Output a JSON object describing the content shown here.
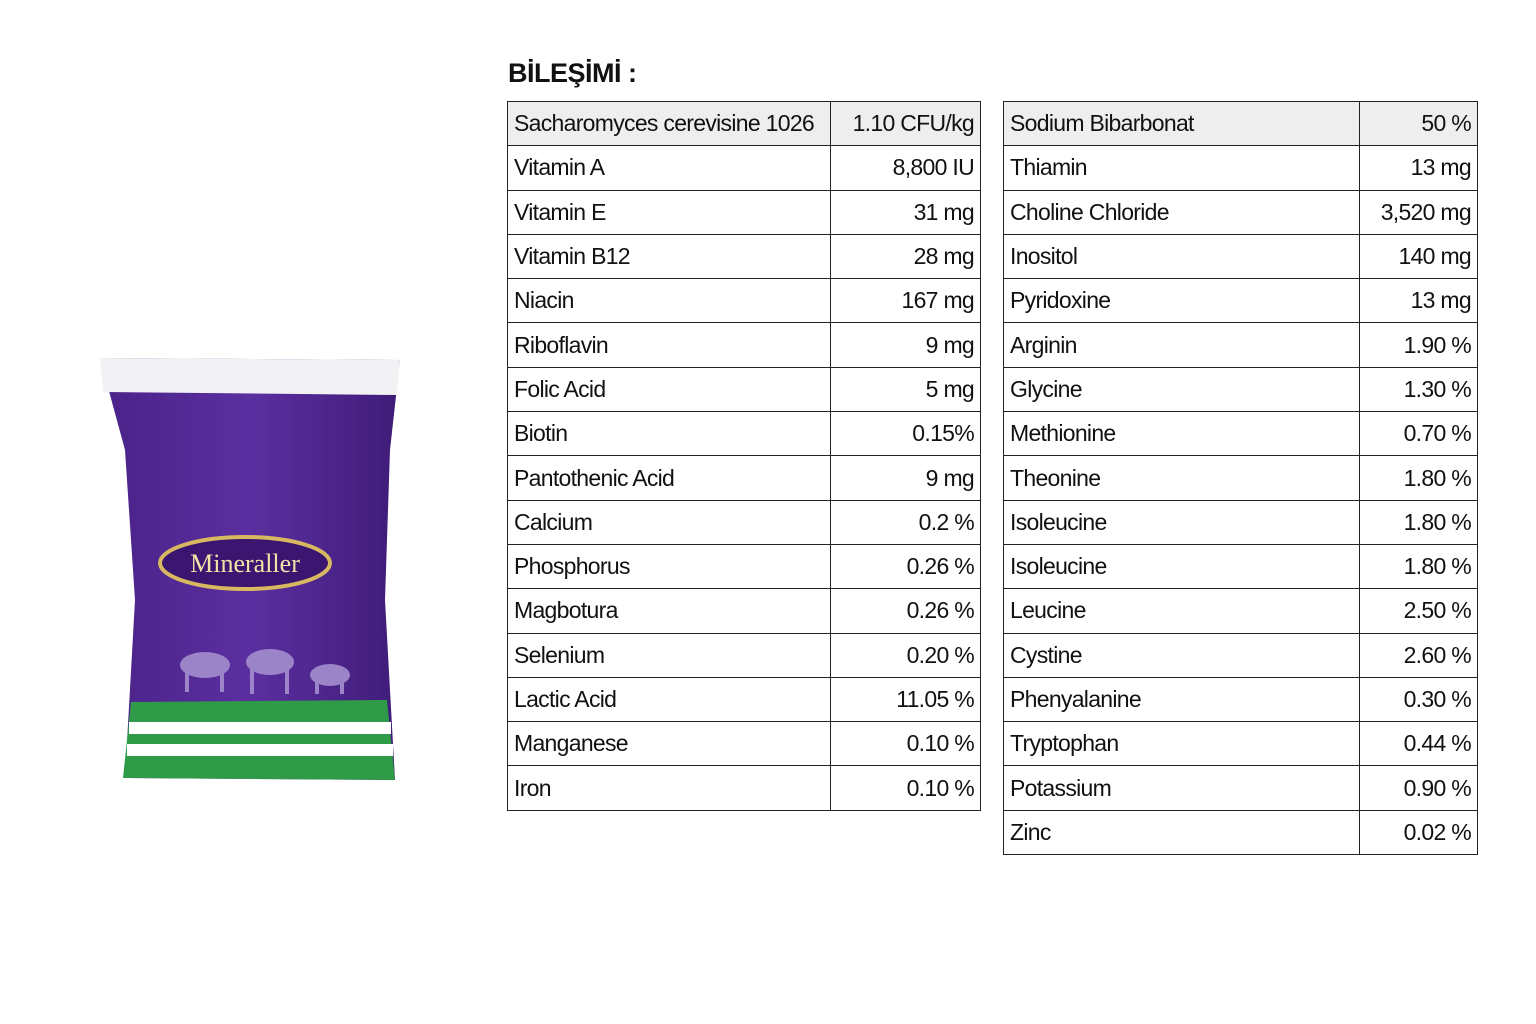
{
  "product": {
    "label": "Mineraller"
  },
  "title": "BİLEŞİMİ :",
  "tables": [
    {
      "rows": [
        [
          "Sacharomyces cerevisine 1026",
          "1.10  CFU/kg"
        ],
        [
          "Vitamin A",
          "8,800 IU"
        ],
        [
          "Vitamin E",
          "31 mg"
        ],
        [
          "Vitamin B12",
          "28 mg"
        ],
        [
          "Niacin",
          "167 mg"
        ],
        [
          "Riboflavin",
          "9 mg"
        ],
        [
          "Folic Acid",
          "5 mg"
        ],
        [
          "Biotin",
          "0.15%"
        ],
        [
          "Pantothenic Acid",
          "9 mg"
        ],
        [
          "Calcium",
          "0.2 %"
        ],
        [
          "Phosphorus",
          "0.26 %"
        ],
        [
          "Magbotura",
          "0.26 %"
        ],
        [
          "Selenium",
          "0.20 %"
        ],
        [
          "Lactic Acid",
          "11.05 %"
        ],
        [
          "Manganese",
          "0.10 %"
        ],
        [
          "Iron",
          "0.10 %"
        ]
      ]
    },
    {
      "rows": [
        [
          "Sodium Bibarbonat",
          "50 %"
        ],
        [
          "Thiamin",
          "13 mg"
        ],
        [
          "Choline Chloride",
          "3,520 mg"
        ],
        [
          "Inositol",
          "140 mg"
        ],
        [
          "Pyridoxine",
          "13 mg"
        ],
        [
          "Arginin",
          "1.90 %"
        ],
        [
          "Glycine",
          "1.30 %"
        ],
        [
          "Methionine",
          "0.70 %"
        ],
        [
          "Theonine",
          "1.80 %"
        ],
        [
          "Isoleucine",
          "1.80 %"
        ],
        [
          "Isoleucine",
          "1.80 %"
        ],
        [
          "Leucine",
          "2.50 %"
        ],
        [
          "Cystine",
          "2.60 %"
        ],
        [
          "Phenyalanine",
          "0.30 %"
        ],
        [
          "Tryptophan",
          "0.44 %"
        ],
        [
          "Potassium",
          "0.90 %"
        ],
        [
          "Zinc",
          "0.02 %"
        ]
      ]
    }
  ]
}
